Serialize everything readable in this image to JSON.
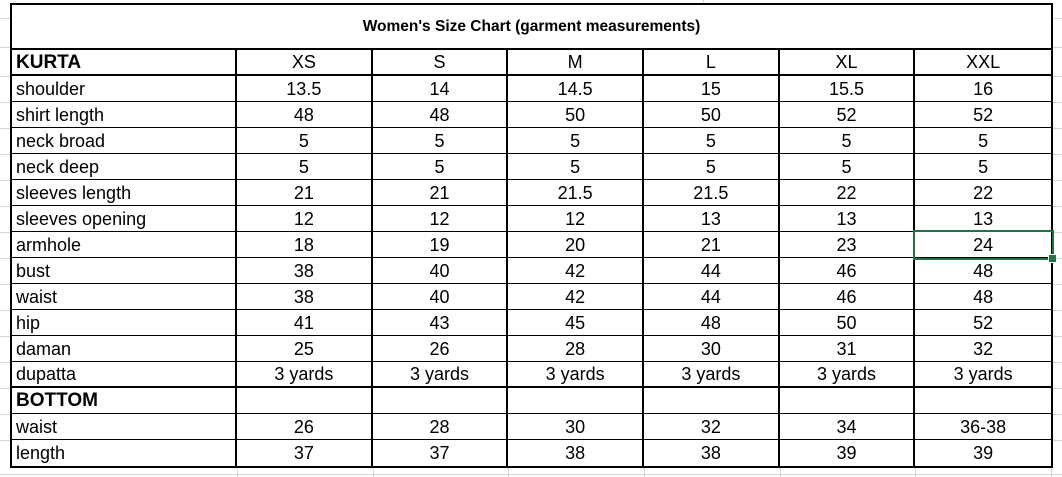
{
  "chart_data": {
    "type": "table",
    "title": "Women's Size Chart (garment measurements)",
    "columns": [
      "KURTA",
      "XS",
      "S",
      "M",
      "L",
      "XL",
      "XXL"
    ],
    "rows": [
      {
        "label": "shoulder",
        "values": [
          "13.5",
          "14",
          "14.5",
          "15",
          "15.5",
          "16"
        ]
      },
      {
        "label": "shirt length",
        "values": [
          "48",
          "48",
          "50",
          "50",
          "52",
          "52"
        ]
      },
      {
        "label": "neck broad",
        "values": [
          "5",
          "5",
          "5",
          "5",
          "5",
          "5"
        ]
      },
      {
        "label": "neck deep",
        "values": [
          "5",
          "5",
          "5",
          "5",
          "5",
          "5"
        ]
      },
      {
        "label": "sleeves length",
        "values": [
          "21",
          "21",
          "21.5",
          "21.5",
          "22",
          "22"
        ]
      },
      {
        "label": "sleeves opening",
        "values": [
          "12",
          "12",
          "12",
          "13",
          "13",
          "13"
        ]
      },
      {
        "label": "armhole",
        "values": [
          "18",
          "19",
          "20",
          "21",
          "23",
          "24"
        ]
      },
      {
        "label": "bust",
        "values": [
          "38",
          "40",
          "42",
          "44",
          "46",
          "48"
        ]
      },
      {
        "label": "waist",
        "values": [
          "38",
          "40",
          "42",
          "44",
          "46",
          "48"
        ]
      },
      {
        "label": "hip",
        "values": [
          "41",
          "43",
          "45",
          "48",
          "50",
          "52"
        ]
      },
      {
        "label": "daman",
        "values": [
          "25",
          "26",
          "28",
          "30",
          "31",
          "32"
        ]
      },
      {
        "label": "dupatta",
        "values": [
          "3 yards",
          "3 yards",
          "3 yards",
          "3 yards",
          "3 yards",
          "3 yards"
        ],
        "section_break_after": true
      },
      {
        "label": "BOTTOM",
        "values": [
          "",
          "",
          "",
          "",
          "",
          ""
        ],
        "bold": true
      },
      {
        "label": "waist",
        "values": [
          "26",
          "28",
          "30",
          "32",
          "34",
          "36-38"
        ]
      },
      {
        "label": "length",
        "values": [
          "37",
          "37",
          "38",
          "38",
          "39",
          "39"
        ]
      }
    ]
  },
  "selection": {
    "active_cell": {
      "row_label": "armhole",
      "column": "XXL",
      "value": "24"
    }
  },
  "colors": {
    "selection_green": "#217346",
    "gridline_gray": "#d6d6d6",
    "table_border": "#000000",
    "background": "#ffffff"
  }
}
